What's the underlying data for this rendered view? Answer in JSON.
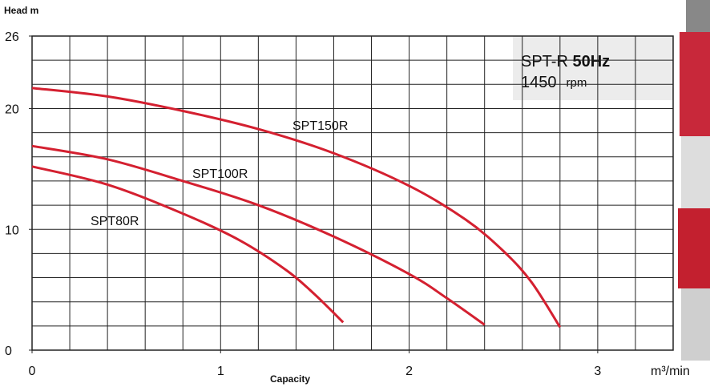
{
  "chart_data": {
    "type": "line",
    "y_label": "Head m",
    "x_label": "Capacity",
    "x_unit": "m³/min",
    "model": "SPT-R",
    "frequency": "50Hz",
    "speed": "1450",
    "speed_unit": "rpm",
    "xlim": [
      0,
      3.4
    ],
    "ylim": [
      0,
      26
    ],
    "xticks": [
      0,
      1,
      2,
      3
    ],
    "yticks": [
      0,
      10,
      20,
      26
    ],
    "x_grid": [
      0.2,
      0.4,
      0.6,
      0.8,
      1,
      1.2,
      1.4,
      1.6,
      1.8,
      2,
      2.2,
      2.4,
      2.6,
      2.8,
      3,
      3.2
    ],
    "y_grid": [
      2,
      4,
      6,
      8,
      10,
      12,
      14,
      16,
      18,
      20,
      22,
      24
    ],
    "series": [
      {
        "name": "SPT150R",
        "color": "#d42030",
        "x": [
          0,
          0.4,
          0.8,
          1.2,
          1.6,
          2,
          2.3,
          2.5,
          2.65,
          2.8
        ],
        "values": [
          21.7,
          21,
          19.8,
          18.3,
          16.3,
          13.6,
          10.8,
          8.2,
          5.6,
          1.9
        ]
      },
      {
        "name": "SPT100R",
        "color": "#d42030",
        "x": [
          0,
          0.4,
          0.8,
          1.2,
          1.6,
          2,
          2.2,
          2.4
        ],
        "values": [
          16.9,
          15.8,
          14,
          12,
          9.4,
          6.3,
          4.3,
          2.1
        ]
      },
      {
        "name": "SPT80R",
        "color": "#d42030",
        "x": [
          0,
          0.4,
          0.8,
          1.1,
          1.35,
          1.5,
          1.65
        ],
        "values": [
          15.2,
          13.7,
          11.3,
          9.1,
          6.6,
          4.6,
          2.3
        ]
      }
    ]
  }
}
